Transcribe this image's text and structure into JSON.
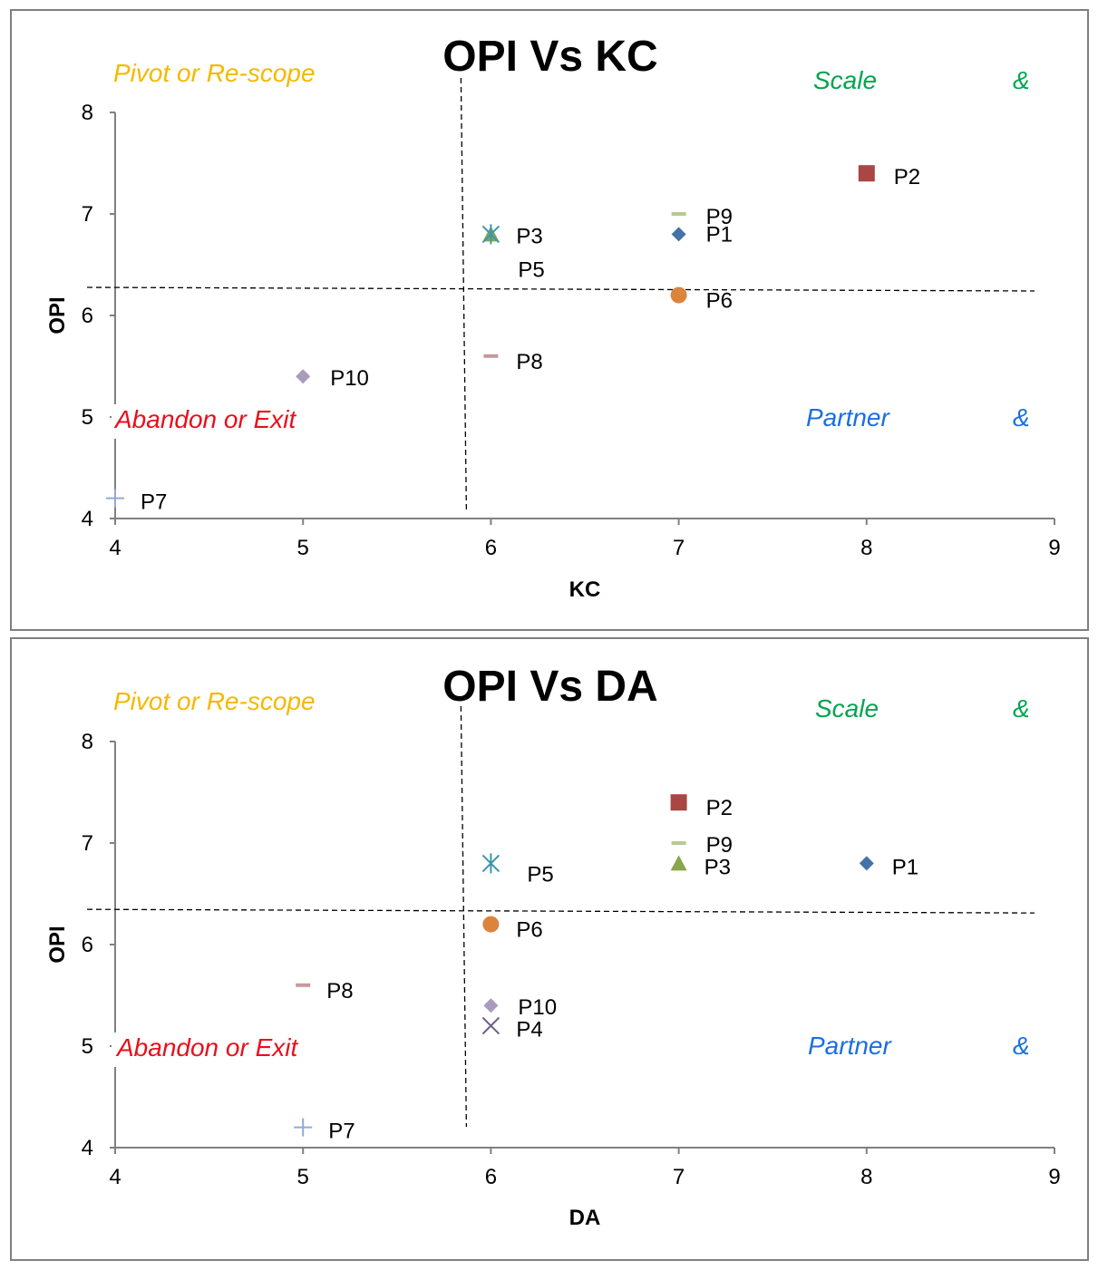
{
  "chart_data": [
    {
      "type": "scatter",
      "title": "OPI Vs KC",
      "xlabel": "KC",
      "ylabel": "OPI",
      "xlim": [
        4,
        9
      ],
      "ylim": [
        4,
        8
      ],
      "xticks": [
        "4",
        "5",
        "6",
        "7",
        "8",
        "9"
      ],
      "yticks": [
        "4",
        "5",
        "6",
        "7",
        "8"
      ],
      "quadrant_labels": {
        "top_left": "Pivot or Re-scope",
        "top_right": "Scale",
        "top_right_symbol": "&",
        "bottom_left": "Abandon or Exit",
        "bottom_right": "Partner",
        "bottom_right_symbol": "&"
      },
      "divider": {
        "x": 5.86,
        "y": 6.25
      },
      "points": [
        {
          "label": "P1",
          "x": 7,
          "y": 6.8,
          "marker": "diamond",
          "color": "#4572A7"
        },
        {
          "label": "P2",
          "x": 8,
          "y": 7.4,
          "marker": "square",
          "color": "#AA4643"
        },
        {
          "label": "P3",
          "x": 6,
          "y": 6.8,
          "marker": "triangle",
          "color": "#89A54E"
        },
        {
          "label": "P5",
          "x": 6,
          "y": 6.8,
          "marker": "star",
          "color": "#3D96AE"
        },
        {
          "label": "P6",
          "x": 7,
          "y": 6.2,
          "marker": "circle",
          "color": "#DB843D"
        },
        {
          "label": "P7",
          "x": 4,
          "y": 4.2,
          "marker": "plus",
          "color": "#95A9D4"
        },
        {
          "label": "P8",
          "x": 6,
          "y": 5.6,
          "marker": "dash",
          "color": "#C49A9A"
        },
        {
          "label": "P9",
          "x": 7,
          "y": 7.0,
          "marker": "dash",
          "color": "#B5CA92"
        },
        {
          "label": "P10",
          "x": 5,
          "y": 5.4,
          "marker": "diamond",
          "color": "#A99BBD"
        }
      ]
    },
    {
      "type": "scatter",
      "title": "OPI Vs DA",
      "xlabel": "DA",
      "ylabel": "OPI",
      "xlim": [
        4,
        9
      ],
      "ylim": [
        4,
        8
      ],
      "xticks": [
        "4",
        "5",
        "6",
        "7",
        "8",
        "9"
      ],
      "yticks": [
        "4",
        "5",
        "6",
        "7",
        "8"
      ],
      "quadrant_labels": {
        "top_left": "Pivot or Re-scope",
        "top_right": "Scale",
        "top_right_symbol": "&",
        "bottom_left": "Abandon or Exit",
        "bottom_right": "Partner",
        "bottom_right_symbol": "&"
      },
      "divider": {
        "x": 5.86,
        "y": 6.32
      },
      "points": [
        {
          "label": "P1",
          "x": 8,
          "y": 6.8,
          "marker": "diamond",
          "color": "#4572A7"
        },
        {
          "label": "P2",
          "x": 7,
          "y": 7.4,
          "marker": "square",
          "color": "#AA4643"
        },
        {
          "label": "P3",
          "x": 7,
          "y": 6.8,
          "marker": "triangle",
          "color": "#89A54E"
        },
        {
          "label": "P4",
          "x": 6,
          "y": 5.2,
          "marker": "x",
          "color": "#6F5A8A"
        },
        {
          "label": "P5",
          "x": 6,
          "y": 6.8,
          "marker": "star",
          "color": "#3D96AE"
        },
        {
          "label": "P6",
          "x": 6,
          "y": 6.2,
          "marker": "circle",
          "color": "#DB843D"
        },
        {
          "label": "P7",
          "x": 5,
          "y": 4.2,
          "marker": "plus",
          "color": "#95A9D4"
        },
        {
          "label": "P8",
          "x": 5,
          "y": 5.6,
          "marker": "dash",
          "color": "#C49A9A"
        },
        {
          "label": "P9",
          "x": 7,
          "y": 7.0,
          "marker": "dash",
          "color": "#B5CA92"
        },
        {
          "label": "P10",
          "x": 6,
          "y": 5.4,
          "marker": "diamond",
          "color": "#A99BBD"
        }
      ]
    }
  ],
  "colors": {
    "top_left_label": "#F5B800",
    "top_right_label": "#00A550",
    "bottom_left_label": "#E8101C",
    "bottom_right_label": "#1A6FE0",
    "axis": "#808080",
    "frame": "#7F7F7F"
  }
}
